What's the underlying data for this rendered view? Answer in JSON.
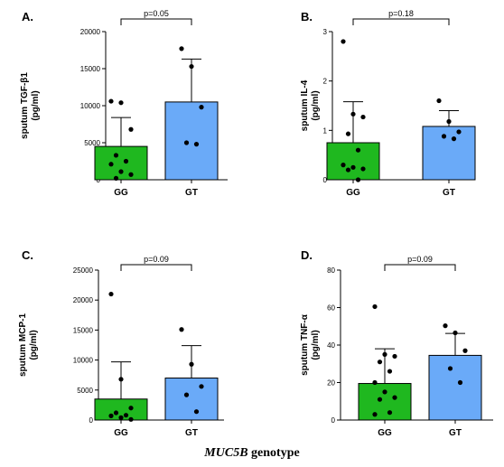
{
  "caption": {
    "gene": "MUC5B",
    "rest": " genotype"
  },
  "colors": {
    "GG": "#1fb81f",
    "GT": "#6aaaf8",
    "dot": "#000000",
    "axis": "#000000"
  },
  "chart_data": [
    {
      "type": "bar",
      "panel": "A.",
      "ylabel_line1": "sputum TGF-β1",
      "ylabel_line2": "(pg/ml)",
      "categories": [
        "GG",
        "GT"
      ],
      "values": [
        4500,
        10500
      ],
      "error_plus": [
        3900,
        5800
      ],
      "ylim": [
        0,
        20000
      ],
      "yticks": [
        0,
        5000,
        10000,
        15000,
        20000
      ],
      "ytick_labels": [
        "0",
        "5000",
        "10000",
        "15000",
        "20000"
      ],
      "points": [
        [
          10600,
          10400,
          6800,
          3300,
          2500,
          2100,
          1100,
          700,
          200
        ],
        [
          17700,
          15300,
          9800,
          5000,
          4800
        ]
      ],
      "annotation": "p=0.05"
    },
    {
      "type": "bar",
      "panel": "B.",
      "ylabel_line1": "sputum IL-4",
      "ylabel_line2": "(pg/ml)",
      "categories": [
        "GG",
        "GT"
      ],
      "values": [
        0.75,
        1.08
      ],
      "error_plus": [
        0.83,
        0.32
      ],
      "ylim": [
        0,
        3
      ],
      "yticks": [
        0,
        1,
        2,
        3
      ],
      "ytick_labels": [
        "0",
        "1",
        "2",
        "3"
      ],
      "points": [
        [
          2.8,
          1.33,
          1.27,
          0.93,
          0.6,
          0.3,
          0.25,
          0.22,
          0.2,
          0.0
        ],
        [
          1.6,
          1.18,
          0.97,
          0.88,
          0.83
        ]
      ],
      "annotation": "p=0.18"
    },
    {
      "type": "bar",
      "panel": "C.",
      "ylabel_line1": "sputum MCP-1",
      "ylabel_line2": "(pg/ml)",
      "categories": [
        "GG",
        "GT"
      ],
      "values": [
        3500,
        7000
      ],
      "error_plus": [
        6200,
        5400
      ],
      "ylim": [
        0,
        25000
      ],
      "yticks": [
        0,
        5000,
        10000,
        15000,
        20000,
        25000
      ],
      "ytick_labels": [
        "0",
        "5000",
        "10000",
        "15000",
        "20000",
        "25000"
      ],
      "points": [
        [
          21000,
          6800,
          2000,
          1200,
          800,
          700,
          400,
          100
        ],
        [
          15100,
          9300,
          5600,
          4200,
          1400
        ]
      ],
      "annotation": "p=0.09"
    },
    {
      "type": "bar",
      "panel": "D.",
      "ylabel_line1": "sputum TNF-α",
      "ylabel_line2": "(pg/ml)",
      "categories": [
        "GG",
        "GT"
      ],
      "values": [
        19.5,
        34.5
      ],
      "error_plus": [
        18.5,
        11.7
      ],
      "ylim": [
        0,
        80
      ],
      "yticks": [
        0,
        20,
        40,
        60,
        80
      ],
      "ytick_labels": [
        "0",
        "20",
        "40",
        "60",
        "80"
      ],
      "points": [
        [
          60.5,
          35,
          34,
          31,
          26,
          20,
          15,
          12,
          11,
          4,
          3
        ],
        [
          50.3,
          46.5,
          37,
          27.5,
          20
        ]
      ],
      "annotation": "p=0.09"
    }
  ]
}
